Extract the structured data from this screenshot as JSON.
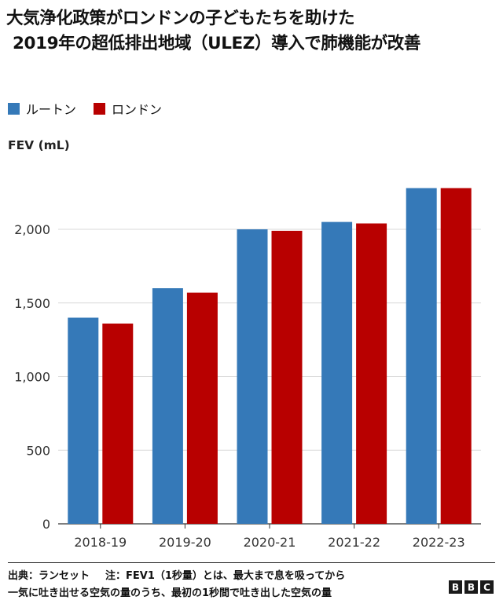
{
  "header": {
    "title_line1": "大気浄化政策がロンドンの子どもたちを助けた",
    "title_line2": "2019年の超低排出地域（ULEZ）導入で肺機能が改善"
  },
  "legend": {
    "items": [
      {
        "label": "ルートン",
        "color": "#3579b8"
      },
      {
        "label": "ロンドン",
        "color": "#b80000"
      }
    ]
  },
  "axis": {
    "unit_label": "FEV (mL)"
  },
  "chart_data": {
    "type": "bar",
    "categories": [
      "2018-19",
      "2019-20",
      "2020-21",
      "2021-22",
      "2022-23"
    ],
    "series": [
      {
        "name": "ルートン",
        "values": [
          1400,
          1600,
          2000,
          2050,
          2280
        ],
        "color": "#3579b8"
      },
      {
        "name": "ロンドン",
        "values": [
          1360,
          1570,
          1990,
          2040,
          2280
        ],
        "color": "#b80000"
      }
    ],
    "ylabel": "FEV (mL)",
    "ylim": [
      0,
      2500
    ],
    "yticks": [
      0,
      500,
      1000,
      1500,
      2000
    ],
    "ytick_labels": [
      "0",
      "500",
      "1,000",
      "1,500",
      "2,000"
    ],
    "grid": true,
    "legend_position": "top-left"
  },
  "footer": {
    "source": "出典：ランセット",
    "note_line1": "注：FEV1（1秒量）とは、最大まで息を吸ってから",
    "note_line2": "一気に吐き出せる空気の量のうち、最初の1秒間で吐き出した空気の量",
    "logo_letters": [
      "B",
      "B",
      "C"
    ]
  }
}
